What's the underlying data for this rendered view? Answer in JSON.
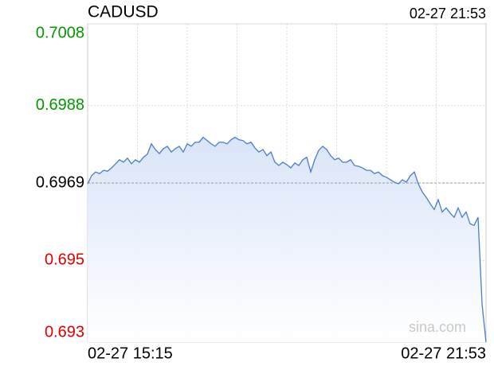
{
  "chart_data": {
    "type": "line",
    "title": "CADUSD",
    "timestamp": "02-27 21:53",
    "watermark": "sina.com",
    "categories": [
      "02-27 15:15",
      null,
      null,
      null,
      null,
      null,
      null,
      null,
      null,
      null,
      null,
      null,
      null,
      null,
      null,
      null,
      null,
      null,
      null,
      null,
      null,
      null,
      null,
      null,
      null,
      null,
      null,
      null,
      null,
      null,
      null,
      null,
      null,
      null,
      null,
      null,
      null,
      null,
      null,
      null,
      null,
      null,
      null,
      null,
      null,
      null,
      null,
      null,
      null,
      null,
      null,
      null,
      null,
      null,
      null,
      null,
      null,
      null,
      null,
      null,
      null,
      null,
      null,
      null,
      null,
      null,
      null,
      null,
      null,
      null,
      null,
      null,
      null,
      null,
      null,
      null,
      null,
      null,
      null,
      null,
      null,
      null,
      null,
      null,
      null,
      null,
      null,
      null,
      null,
      null,
      null,
      null,
      null,
      null,
      null,
      null,
      null,
      null,
      null,
      null,
      "02-27 21:53"
    ],
    "values": [
      0.69688,
      0.69708,
      0.69717,
      0.69713,
      0.69721,
      0.69719,
      0.69727,
      0.69737,
      0.69747,
      0.69741,
      0.69751,
      0.69737,
      0.69747,
      0.69741,
      0.69753,
      0.69761,
      0.69786,
      0.69772,
      0.69762,
      0.69774,
      0.6978,
      0.69766,
      0.69774,
      0.6978,
      0.69766,
      0.69786,
      0.6978,
      0.6979,
      0.6979,
      0.69802,
      0.69794,
      0.69786,
      0.6978,
      0.6979,
      0.6979,
      0.69786,
      0.69796,
      0.69802,
      0.69796,
      0.69794,
      0.69786,
      0.6979,
      0.69776,
      0.69766,
      0.69772,
      0.69757,
      0.69766,
      0.69741,
      0.69733,
      0.69741,
      0.69735,
      0.69727,
      0.69739,
      0.69733,
      0.69747,
      0.69753,
      0.69717,
      0.69747,
      0.6977,
      0.6978,
      0.69772,
      0.69757,
      0.69747,
      0.69751,
      0.69741,
      0.69741,
      0.69747,
      0.69733,
      0.69731,
      0.69727,
      0.69721,
      0.69721,
      0.69713,
      0.69717,
      0.69708,
      0.69704,
      0.69698,
      0.69692,
      0.69688,
      0.69698,
      0.69692,
      0.69708,
      0.69717,
      0.69688,
      0.69668,
      0.69655,
      0.69639,
      0.69625,
      0.69649,
      0.69619,
      0.69629,
      0.69616,
      0.69606,
      0.69629,
      0.69606,
      0.69619,
      0.6959,
      0.69586,
      0.69606,
      0.69394,
      0.693
    ],
    "color": "#4a7cc7",
    "ylim": [
      0.693,
      0.7008
    ],
    "yticks": [
      0.693,
      0.695,
      0.6969,
      0.6988,
      0.7008
    ],
    "reference": 0.6969,
    "up_color": "#009900",
    "down_color": "#dd0000",
    "grid": true
  }
}
